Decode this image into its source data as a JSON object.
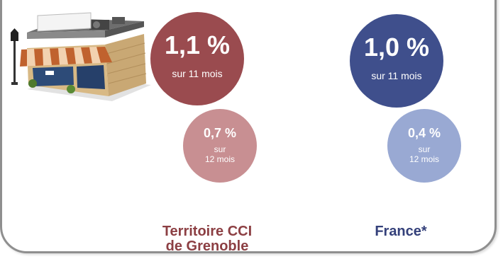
{
  "colors": {
    "grenoble_main": "#9a4b4f",
    "grenoble_secondary": "#c88f92",
    "france_main": "#3f4f8c",
    "france_secondary": "#99a9d3",
    "grenoble_label": "#8c3f43",
    "france_label": "#34407a"
  },
  "grenoble": {
    "value_11": "1,1 %",
    "period_11": "sur 11 mois",
    "value_12": "0,7 %",
    "period_12_line1": "sur",
    "period_12_line2": "12 mois",
    "label_line1": "Territoire CCI",
    "label_line2": "de Grenoble"
  },
  "france": {
    "value_11": "1,0 %",
    "period_11": "sur 11 mois",
    "value_12": "0,4 %",
    "period_12_line1": "sur",
    "period_12_line2": "12 mois",
    "label": "France*"
  },
  "illustration": {
    "icon": "shop-storefront-icon"
  }
}
